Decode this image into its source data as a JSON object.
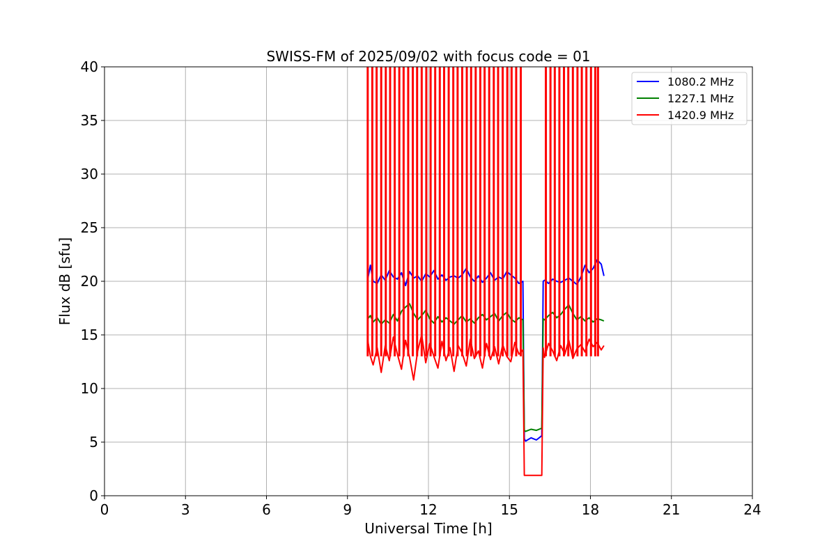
{
  "chart_data": {
    "type": "line",
    "title": "SWISS-FM of 2025/09/02 with focus code = 01",
    "xlabel": "Universal Time [h]",
    "ylabel": "Flux dB [sfu]",
    "xlim": [
      0,
      24
    ],
    "ylim": [
      0,
      40
    ],
    "xticks": [
      0,
      3,
      6,
      9,
      12,
      15,
      18,
      21,
      24
    ],
    "yticks": [
      0,
      5,
      10,
      15,
      20,
      25,
      30,
      35,
      40
    ],
    "xtick_labels": [
      "0",
      "3",
      "6",
      "9",
      "12",
      "15",
      "18",
      "21",
      "24"
    ],
    "ytick_labels": [
      "0",
      "5",
      "10",
      "15",
      "20",
      "25",
      "30",
      "35",
      "40"
    ],
    "grid": true,
    "legend_position": "top-right",
    "series": [
      {
        "name": "1080.2 MHz",
        "color": "#0000ff",
        "x": [
          9.75,
          9.85,
          9.95,
          10.1,
          10.25,
          10.4,
          10.55,
          10.7,
          10.85,
          11.0,
          11.15,
          11.3,
          11.45,
          11.6,
          11.75,
          11.9,
          12.05,
          12.2,
          12.35,
          12.5,
          12.65,
          12.8,
          12.95,
          13.1,
          13.25,
          13.4,
          13.55,
          13.7,
          13.85,
          14.0,
          14.15,
          14.3,
          14.45,
          14.6,
          14.75,
          14.9,
          15.05,
          15.2,
          15.35,
          15.5,
          15.55,
          15.6,
          15.8,
          16.0,
          16.2,
          16.25,
          16.3,
          16.45,
          16.6,
          16.75,
          16.9,
          17.05,
          17.2,
          17.35,
          17.5,
          17.65,
          17.8,
          17.95,
          18.1,
          18.25,
          18.4,
          18.5
        ],
        "y": [
          20.2,
          21.5,
          20.0,
          19.8,
          20.6,
          20.1,
          21.0,
          20.4,
          20.2,
          20.8,
          19.6,
          20.9,
          20.3,
          20.5,
          20.0,
          20.7,
          20.4,
          21.0,
          20.2,
          20.6,
          20.1,
          20.4,
          20.5,
          20.3,
          20.6,
          21.2,
          20.4,
          20.0,
          20.5,
          19.9,
          20.3,
          20.8,
          20.1,
          20.4,
          20.2,
          20.9,
          20.6,
          20.3,
          19.8,
          20.0,
          5.3,
          5.1,
          5.4,
          5.2,
          5.6,
          20.0,
          20.1,
          19.8,
          20.2,
          20.0,
          19.9,
          20.1,
          20.3,
          20.0,
          19.7,
          20.4,
          21.5,
          20.8,
          21.2,
          22.0,
          21.6,
          20.5
        ]
      },
      {
        "name": "1227.1 MHz",
        "color": "#008000",
        "x": [
          9.75,
          9.85,
          9.95,
          10.1,
          10.25,
          10.4,
          10.55,
          10.7,
          10.85,
          11.0,
          11.15,
          11.3,
          11.45,
          11.6,
          11.75,
          11.9,
          12.05,
          12.2,
          12.35,
          12.5,
          12.65,
          12.8,
          12.95,
          13.1,
          13.25,
          13.4,
          13.55,
          13.7,
          13.85,
          14.0,
          14.15,
          14.3,
          14.45,
          14.6,
          14.75,
          14.9,
          15.05,
          15.2,
          15.35,
          15.5,
          15.55,
          15.6,
          15.8,
          16.0,
          16.2,
          16.25,
          16.3,
          16.45,
          16.6,
          16.75,
          16.9,
          17.05,
          17.2,
          17.35,
          17.5,
          17.65,
          17.8,
          17.95,
          18.1,
          18.25,
          18.4,
          18.5
        ],
        "y": [
          16.5,
          16.8,
          16.2,
          16.6,
          16.0,
          16.4,
          16.1,
          16.9,
          16.3,
          17.2,
          17.6,
          17.9,
          17.0,
          16.4,
          16.8,
          17.3,
          16.5,
          16.1,
          16.7,
          16.2,
          16.6,
          16.3,
          16.0,
          16.4,
          16.8,
          16.2,
          16.5,
          16.1,
          16.6,
          16.9,
          16.4,
          16.7,
          17.0,
          16.3,
          16.8,
          17.1,
          16.5,
          16.2,
          16.6,
          16.4,
          6.1,
          6.0,
          6.2,
          6.1,
          6.3,
          16.5,
          16.4,
          16.8,
          17.1,
          16.6,
          16.9,
          17.4,
          17.8,
          17.0,
          16.4,
          16.7,
          16.3,
          16.6,
          16.2,
          16.5,
          16.4,
          16.3
        ]
      },
      {
        "name": "1420.9 MHz",
        "color": "#ff0000",
        "x": [
          9.75,
          9.85,
          9.95,
          10.1,
          10.25,
          10.4,
          10.55,
          10.7,
          10.85,
          11.0,
          11.15,
          11.3,
          11.45,
          11.6,
          11.75,
          11.9,
          12.05,
          12.2,
          12.35,
          12.5,
          12.65,
          12.8,
          12.95,
          13.1,
          13.25,
          13.4,
          13.55,
          13.7,
          13.85,
          14.0,
          14.15,
          14.3,
          14.45,
          14.6,
          14.75,
          14.9,
          15.05,
          15.2,
          15.35,
          15.5,
          15.55,
          15.6,
          15.8,
          16.0,
          16.2,
          16.25,
          16.3,
          16.45,
          16.6,
          16.75,
          16.9,
          17.05,
          17.2,
          17.35,
          17.5,
          17.65,
          17.8,
          17.95,
          18.1,
          18.25,
          18.4,
          18.5
        ],
        "y": [
          14.5,
          13.0,
          12.2,
          13.8,
          11.5,
          14.0,
          12.6,
          14.8,
          13.2,
          11.8,
          14.5,
          12.9,
          10.8,
          13.5,
          15.0,
          12.4,
          14.2,
          13.0,
          11.9,
          14.4,
          12.6,
          13.8,
          11.6,
          14.0,
          13.3,
          12.1,
          14.6,
          12.8,
          13.5,
          11.9,
          14.2,
          12.7,
          13.9,
          12.3,
          14.1,
          13.0,
          12.5,
          14.3,
          13.2,
          13.6,
          1.9,
          1.9,
          1.9,
          1.9,
          1.9,
          13.8,
          12.9,
          14.2,
          13.5,
          12.6,
          14.0,
          13.2,
          14.5,
          12.8,
          13.7,
          14.1,
          13.4,
          14.6,
          13.9,
          14.3,
          13.6,
          14.0
        ]
      }
    ],
    "spikes": {
      "x": [
        9.75,
        9.92,
        10.08,
        10.25,
        10.42,
        10.58,
        10.75,
        10.92,
        11.08,
        11.25,
        11.42,
        11.58,
        11.75,
        11.92,
        12.08,
        12.25,
        12.42,
        12.58,
        12.75,
        12.92,
        13.08,
        13.25,
        13.42,
        13.58,
        13.75,
        13.92,
        14.08,
        14.25,
        14.42,
        14.58,
        14.75,
        14.92,
        15.08,
        15.25,
        15.42,
        16.35,
        16.52,
        16.68,
        16.85,
        17.02,
        17.18,
        17.35,
        17.52,
        17.68,
        17.85,
        18.02,
        18.18,
        18.28
      ],
      "top": 40
    }
  }
}
